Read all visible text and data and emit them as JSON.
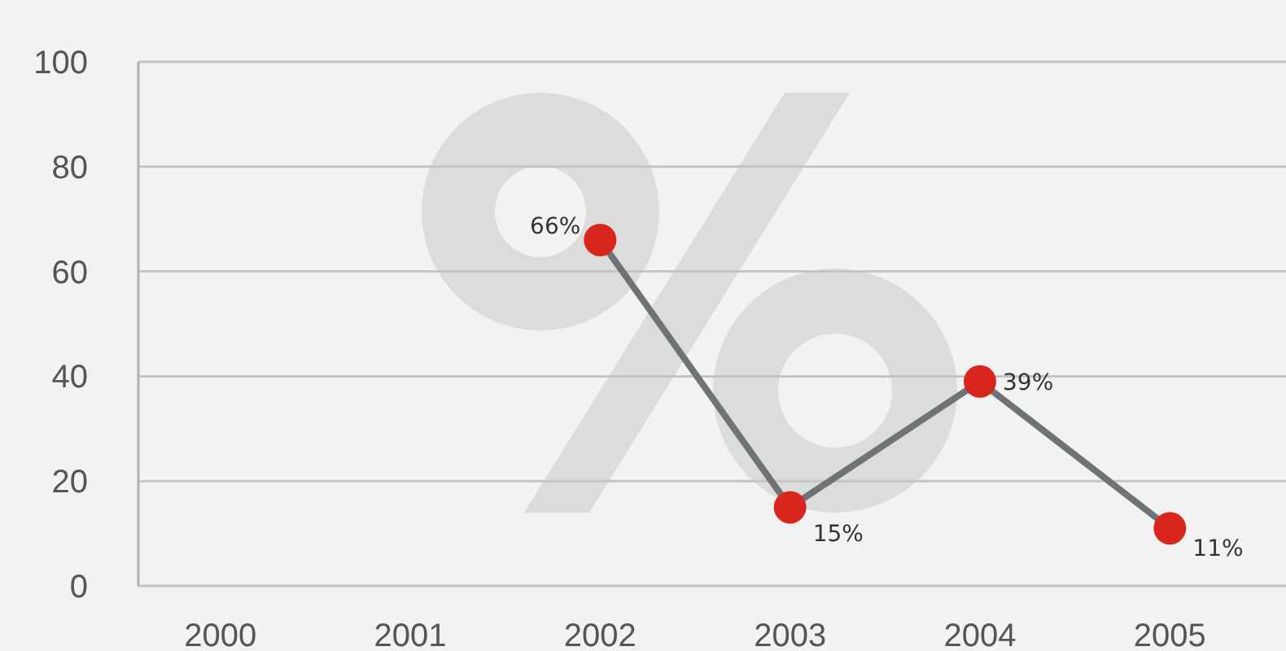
{
  "chart_data": {
    "type": "line",
    "categories": [
      "2000",
      "2001",
      "2002",
      "2003",
      "2004",
      "2005"
    ],
    "series": [
      {
        "color": "#6e7376",
        "colors": [
          null,
          null,
          "#d8261f",
          "#d8261f",
          "#d8261f",
          "#d8261f"
        ],
        "values": [
          null,
          null,
          66,
          15,
          39,
          11
        ],
        "value_labels": [
          null,
          null,
          "66%",
          "15%",
          "39%",
          "11%"
        ]
      }
    ],
    "ylim": [
      0,
      100
    ],
    "yticks": [
      0,
      20,
      40,
      60,
      80,
      100
    ],
    "grid": "y",
    "marker": "circle",
    "line_style": "solid"
  }
}
